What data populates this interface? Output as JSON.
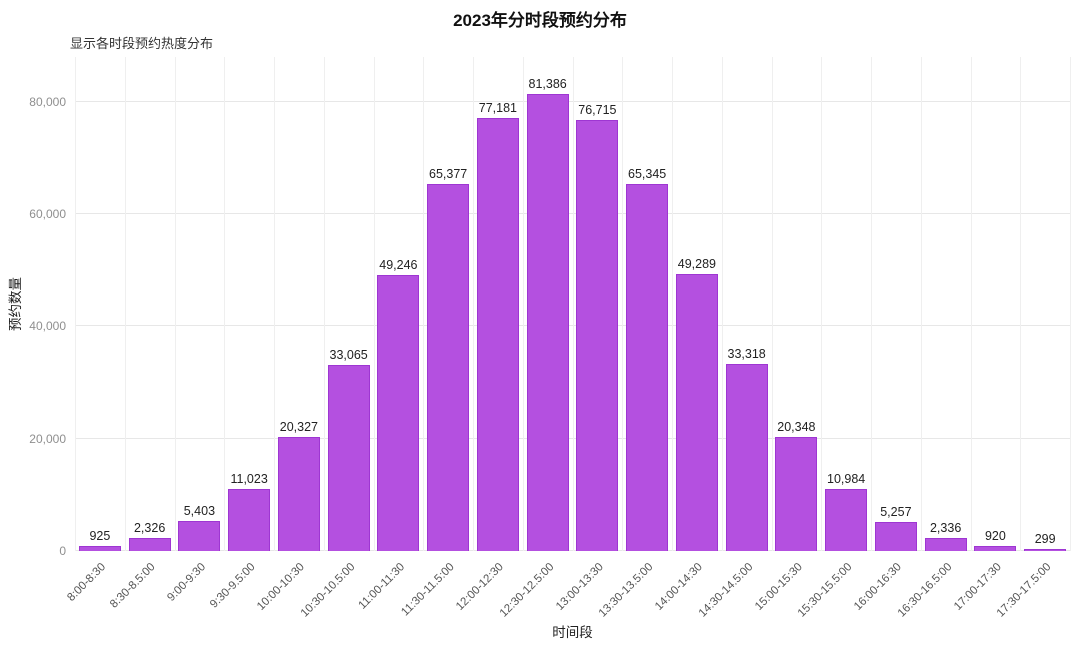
{
  "chart_data": {
    "type": "bar",
    "title": "2023年分时段预约分布",
    "subtitle": "显示各时段预约热度分布",
    "xlabel": "时间段",
    "ylabel": "预约数量",
    "categories": [
      "8:00-8:30",
      "8:30-8.5:00",
      "9:00-9:30",
      "9:30-9.5:00",
      "10:00-10:30",
      "10:30-10.5:00",
      "11:00-11:30",
      "11:30-11.5:00",
      "12:00-12:30",
      "12:30-12.5:00",
      "13:00-13:30",
      "13:30-13.5:00",
      "14:00-14:30",
      "14:30-14.5:00",
      "15:00-15:30",
      "15:30-15.5:00",
      "16:00-16:30",
      "16:30-16.5:00",
      "17:00-17:30",
      "17:30-17.5:00"
    ],
    "values": [
      925,
      2326,
      5403,
      11023,
      20327,
      33065,
      49246,
      65377,
      77181,
      81386,
      76715,
      65345,
      49289,
      33318,
      20348,
      10984,
      5257,
      2336,
      920,
      299
    ],
    "value_labels": [
      "925",
      "2,326",
      "5,403",
      "11,023",
      "20,327",
      "33,065",
      "49,246",
      "65,377",
      "77,181",
      "81,386",
      "76,715",
      "65,345",
      "49,289",
      "33,318",
      "20,348",
      "10,984",
      "5,257",
      "2,336",
      "920",
      "299"
    ],
    "ylim": [
      0,
      88000
    ],
    "yticks": [
      0,
      20000,
      40000,
      60000,
      80000
    ],
    "ytick_labels": [
      "0",
      "20,000",
      "40,000",
      "60,000",
      "80,000"
    ],
    "grid": true,
    "legend_position": "none",
    "bar_color": "#b450e0",
    "bar_border_color": "#9e36d2"
  }
}
